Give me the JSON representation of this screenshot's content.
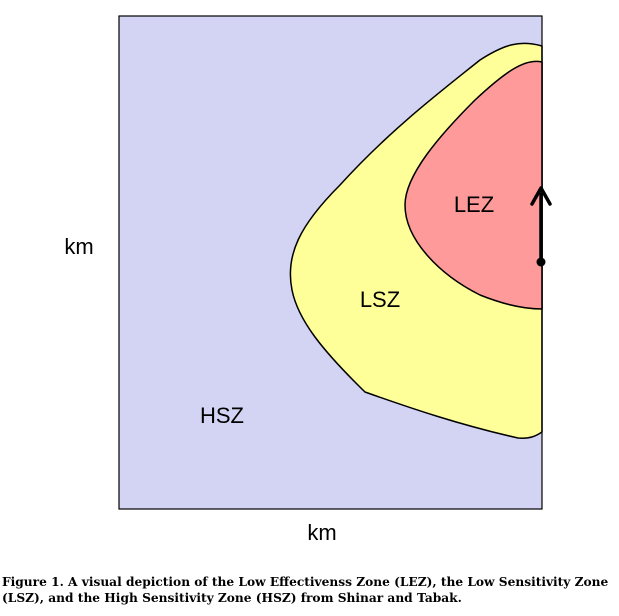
{
  "zones": {
    "hsz": {
      "label": "HSZ",
      "color": "#d3d3f3"
    },
    "lsz": {
      "label": "LSZ",
      "color": "#ffff99"
    },
    "lez": {
      "label": "LEZ",
      "color": "#ff9a9a"
    }
  },
  "axes": {
    "x_label": "km",
    "y_label": "km"
  },
  "caption": "Figure 1. A visual depiction of the Low Effectivenss Zone (LEZ), the Low Sensitivity Zone (LSZ), and the High Sensitivity Zone (HSZ) from Shinar and Tabak."
}
